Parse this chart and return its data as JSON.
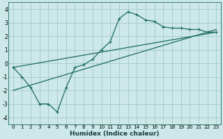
{
  "xlabel": "Humidex (Indice chaleur)",
  "background_color": "#cce8e8",
  "grid_color": "#aacccc",
  "line_color": "#1a6b5a",
  "xlim": [
    -0.5,
    23.5
  ],
  "ylim": [
    -4.5,
    4.5
  ],
  "xticks": [
    0,
    1,
    2,
    3,
    4,
    5,
    6,
    7,
    8,
    9,
    10,
    11,
    12,
    13,
    14,
    15,
    16,
    17,
    18,
    19,
    20,
    21,
    22,
    23
  ],
  "yticks": [
    -4,
    -3,
    -2,
    -1,
    0,
    1,
    2,
    3,
    4
  ],
  "main_x": [
    0,
    1,
    2,
    3,
    4,
    5,
    6,
    7,
    8,
    9,
    10,
    11,
    12,
    13,
    14,
    15,
    16,
    17,
    18,
    19,
    20,
    21,
    22,
    23
  ],
  "main_y": [
    -0.3,
    -1.0,
    -1.8,
    -3.0,
    -3.0,
    -3.6,
    -1.8,
    -0.3,
    -0.1,
    0.3,
    1.0,
    1.6,
    3.3,
    3.8,
    3.6,
    3.2,
    3.1,
    2.7,
    2.6,
    2.6,
    2.5,
    2.5,
    2.3,
    2.3
  ],
  "line1_x": [
    0,
    23
  ],
  "line1_y": [
    -0.3,
    2.3
  ],
  "line2_x": [
    0,
    23
  ],
  "line2_y": [
    -2.0,
    2.5
  ]
}
